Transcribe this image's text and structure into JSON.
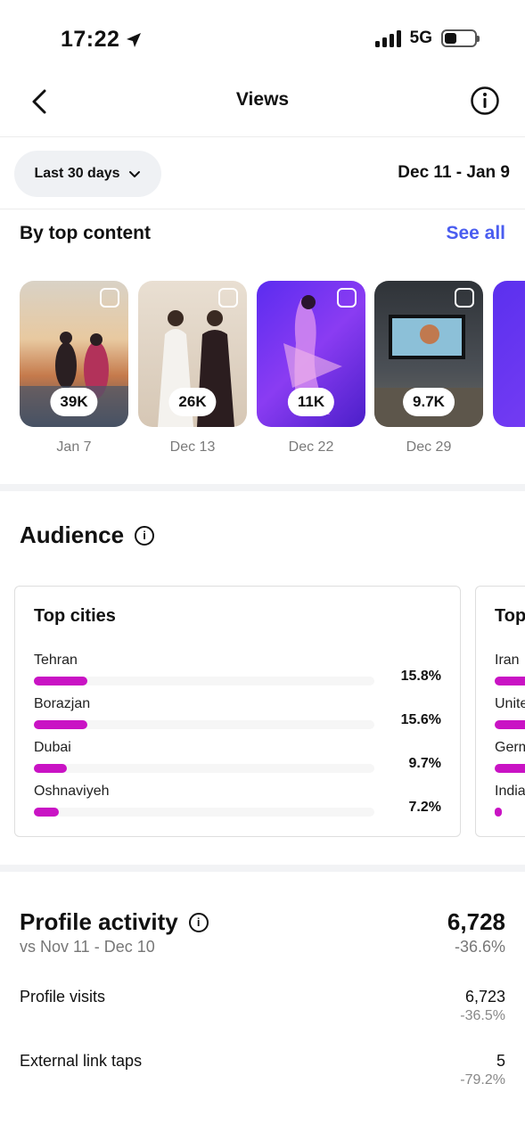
{
  "status": {
    "time": "17:22",
    "network": "5G"
  },
  "nav": {
    "title": "Views"
  },
  "filter": {
    "period": "Last 30 days",
    "range": "Dec 11 - Jan 9"
  },
  "top_content": {
    "title": "By top content",
    "see_all": "See all",
    "items": [
      {
        "views": "39K",
        "date": "Jan 7"
      },
      {
        "views": "26K",
        "date": "Dec 13"
      },
      {
        "views": "11K",
        "date": "Dec 22"
      },
      {
        "views": "9.7K",
        "date": "Dec 29"
      }
    ]
  },
  "audience": {
    "title": "Audience",
    "top_cities": {
      "title": "Top cities",
      "rows": [
        {
          "name": "Tehran",
          "percent": "15.8%",
          "value": 15.8
        },
        {
          "name": "Borazjan",
          "percent": "15.6%",
          "value": 15.6
        },
        {
          "name": "Dubai",
          "percent": "9.7%",
          "value": 9.7
        },
        {
          "name": "Oshnaviyeh",
          "percent": "7.2%",
          "value": 7.2
        }
      ]
    },
    "top_countries": {
      "title": "Top",
      "rows": [
        {
          "name": "Iran"
        },
        {
          "name": "Unite"
        },
        {
          "name": "Germ"
        },
        {
          "name": "India"
        }
      ]
    }
  },
  "profile_activity": {
    "title": "Profile activity",
    "compare": "vs Nov 11 - Dec 10",
    "total": "6,728",
    "total_change": "-36.6%",
    "metrics": [
      {
        "label": "Profile visits",
        "value": "6,723",
        "change": "-36.5%"
      },
      {
        "label": "External link taps",
        "value": "5",
        "change": "-79.2%"
      }
    ]
  },
  "colors": {
    "accent": "#4a5df0",
    "bar": "#c913c4"
  }
}
